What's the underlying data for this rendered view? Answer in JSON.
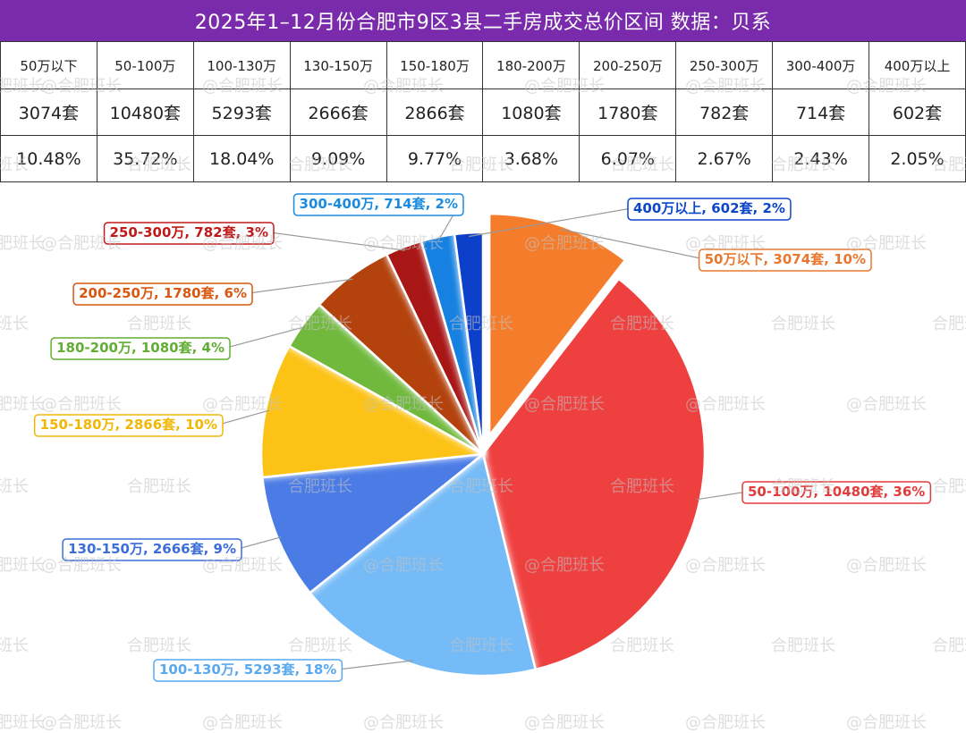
{
  "title": "2025年1–12月份合肥市9区3县二手房成交总价区间 数据：贝系",
  "table": {
    "headers": [
      "50万以下",
      "50-100万",
      "100-130万",
      "130-150万",
      "150-180万",
      "180-200万",
      "200-250万",
      "250-300万",
      "300-400万",
      "400万以上"
    ],
    "counts": [
      "3074套",
      "10480套",
      "5293套",
      "2666套",
      "2866套",
      "1080套",
      "1780套",
      "782套",
      "714套",
      "602套"
    ],
    "percents": [
      "10.48%",
      "35.72%",
      "18.04%",
      "9.09%",
      "9.77%",
      "3.68%",
      "6.07%",
      "2.67%",
      "2.43%",
      "2.05%"
    ]
  },
  "watermarks": {
    "at": "@合肥班长",
    "plain": "合肥班长"
  },
  "chart_data": {
    "type": "pie",
    "slices": [
      {
        "category": "50万以下",
        "value": 3074,
        "label": "50万以下, 3074套, 10%",
        "color": "#f57c2c",
        "label_color": "#e8782f",
        "exploded": true
      },
      {
        "category": "50-100万",
        "value": 10480,
        "label": "50-100万, 10480套, 36%",
        "color": "#ef4040",
        "label_color": "#e23b3b",
        "exploded": false
      },
      {
        "category": "100-130万",
        "value": 5293,
        "label": "100-130万, 5293套, 18%",
        "color": "#74bbf7",
        "label_color": "#5aa9ef",
        "exploded": false
      },
      {
        "category": "130-150万",
        "value": 2666,
        "label": "130-150万, 2666套, 9%",
        "color": "#4b7be6",
        "label_color": "#3b6ddb",
        "exploded": false
      },
      {
        "category": "150-180万",
        "value": 2866,
        "label": "150-180万, 2866套, 10%",
        "color": "#fcc312",
        "label_color": "#f2b706",
        "exploded": false
      },
      {
        "category": "180-200万",
        "value": 1080,
        "label": "180-200万, 1080套, 4%",
        "color": "#6fb93c",
        "label_color": "#62ad33",
        "exploded": false
      },
      {
        "category": "200-250万",
        "value": 1780,
        "label": "200-250万, 1780套, 6%",
        "color": "#b3430d",
        "label_color": "#d9570f",
        "exploded": false
      },
      {
        "category": "250-300万",
        "value": 782,
        "label": "250-300万, 782套, 3%",
        "color": "#a81212",
        "label_color": "#c01919",
        "exploded": false
      },
      {
        "category": "300-400万",
        "value": 714,
        "label": "300-400万, 714套, 2%",
        "color": "#1681e0",
        "label_color": "#1b8be0",
        "exploded": false
      },
      {
        "category": "400万以上",
        "value": 602,
        "label": "400万以上, 602套, 2%",
        "color": "#0c3fc9",
        "label_color": "#0d47c9",
        "exploded": false
      }
    ]
  }
}
